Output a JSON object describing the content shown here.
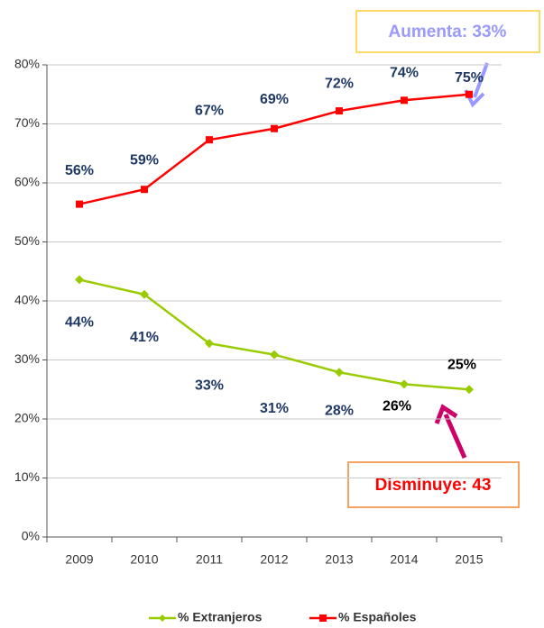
{
  "chart_data": {
    "type": "line",
    "categories": [
      "2009",
      "2010",
      "2011",
      "2012",
      "2013",
      "2014",
      "2015"
    ],
    "series": [
      {
        "name": "% Extranjeros",
        "color": "#99cc00",
        "values": [
          43.6,
          41.1,
          32.8,
          30.9,
          27.9,
          25.9,
          25.0
        ],
        "value_labels": [
          "44%",
          "41%",
          "33%",
          "31%",
          "28%",
          "26%",
          "25%"
        ]
      },
      {
        "name": "% Españoles",
        "color": "#ff0000",
        "values": [
          56.4,
          58.9,
          67.3,
          69.2,
          72.2,
          74.0,
          75.0
        ],
        "value_labels": [
          "56%",
          "59%",
          "67%",
          "69%",
          "72%",
          "74%",
          "75%"
        ]
      }
    ],
    "ylim": [
      0,
      80
    ],
    "yticks": [
      {
        "value": 0,
        "label": "0%"
      },
      {
        "value": 10,
        "label": "10%"
      },
      {
        "value": 20,
        "label": "20%"
      },
      {
        "value": 30,
        "label": "30%"
      },
      {
        "value": 40,
        "label": "40%"
      },
      {
        "value": 50,
        "label": "50%"
      },
      {
        "value": 60,
        "label": "60%"
      },
      {
        "value": 70,
        "label": "70%"
      },
      {
        "value": 80,
        "label": "80%"
      }
    ],
    "grid": true,
    "legend": "bottom",
    "annotations": [
      "Aumenta: 33%",
      "Disminuye: 43"
    ]
  }
}
